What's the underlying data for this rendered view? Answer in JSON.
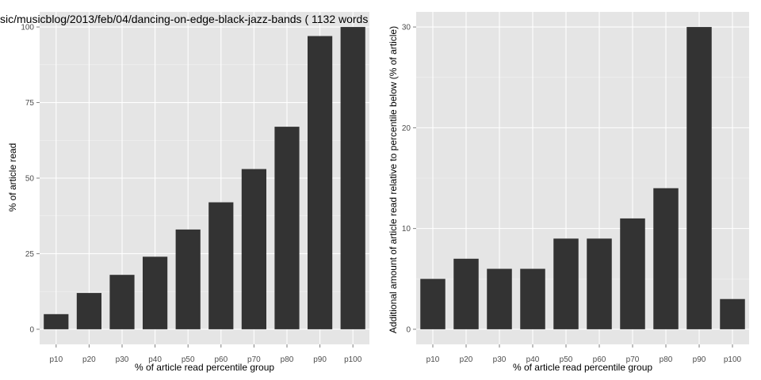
{
  "colors": {
    "panel_background": "#e5e5e5",
    "grid_major": "#ffffff",
    "grid_minor": "#f2f2f2",
    "bar_fill": "#333333",
    "tick_text": "#4d4d4d",
    "text": "#000000",
    "page_background": "#ffffff"
  },
  "chart_data": [
    {
      "type": "bar",
      "title": "sic/musicblog/2013/feb/04/dancing-on-edge-black-jazz-bands ( 1132 words",
      "xlabel": "% of article read percentile group",
      "ylabel": "% of article read",
      "categories": [
        "p10",
        "p20",
        "p30",
        "p40",
        "p50",
        "p60",
        "p70",
        "p80",
        "p90",
        "p100"
      ],
      "values": [
        5,
        12,
        18,
        24,
        33,
        42,
        53,
        67,
        97,
        100
      ],
      "yticks": [
        0,
        25,
        50,
        75,
        100
      ],
      "ylim": [
        -5,
        105
      ],
      "grid": true
    },
    {
      "type": "bar",
      "title": "",
      "xlabel": "% of article read percentile group",
      "ylabel": "Additional amount of article read relative to percentile below (% of article)",
      "categories": [
        "p10",
        "p20",
        "p30",
        "p40",
        "p50",
        "p60",
        "p70",
        "p80",
        "p90",
        "p100"
      ],
      "values": [
        5,
        7,
        6,
        6,
        9,
        9,
        11,
        14,
        30,
        3
      ],
      "yticks": [
        0,
        10,
        20,
        30
      ],
      "ylim": [
        -1.5,
        31.5
      ],
      "grid": true
    }
  ]
}
